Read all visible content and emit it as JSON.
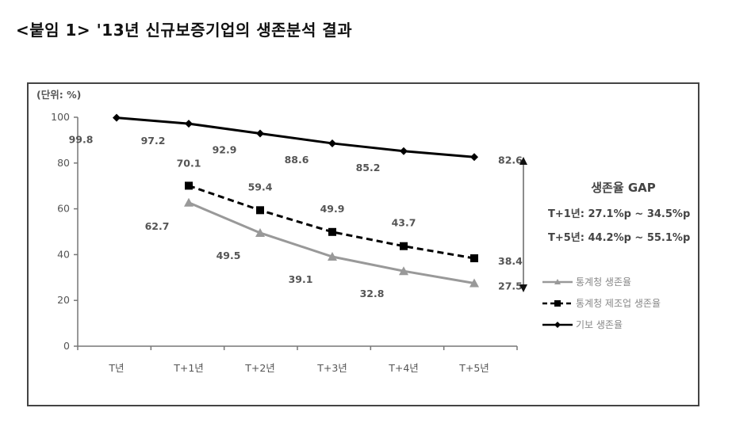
{
  "title": "<붙임 1> '13년 신규보증기업의 생존분석 결과",
  "chart_data": {
    "type": "line",
    "title": "'13년 신규보증기업의 생존분석 결과",
    "unit_label": "(단위: %)",
    "xlabel": "",
    "ylabel": "",
    "ylim": [
      0,
      100
    ],
    "yticks": [
      0,
      20,
      40,
      60,
      80,
      100
    ],
    "grid": false,
    "categories": [
      "T년",
      "T+1년",
      "T+2년",
      "T+3년",
      "T+4년",
      "T+5년"
    ],
    "series": [
      {
        "name": "통계청 생존율",
        "color": "#999999",
        "style": "solid",
        "marker": "triangle",
        "values": [
          null,
          62.7,
          49.5,
          39.1,
          32.8,
          27.5
        ]
      },
      {
        "name": "통계청 제조업 생존율",
        "color": "#000000",
        "style": "dashed",
        "marker": "square",
        "values": [
          null,
          70.1,
          59.4,
          49.9,
          43.7,
          38.4
        ]
      },
      {
        "name": "기보 생존율",
        "color": "#000000",
        "style": "solid",
        "marker": "diamond",
        "values": [
          99.8,
          97.2,
          92.9,
          88.6,
          85.2,
          82.6
        ]
      }
    ],
    "legend_position": "right",
    "annotations": {
      "gap_title": "생존율 GAP",
      "gap_lines": [
        "T+1년: 27.1%p ~ 34.5%p",
        "T+5년: 44.2%p ~ 55.1%p"
      ],
      "double_arrow": "between 82.6 and 27.5 at T+5년"
    }
  }
}
